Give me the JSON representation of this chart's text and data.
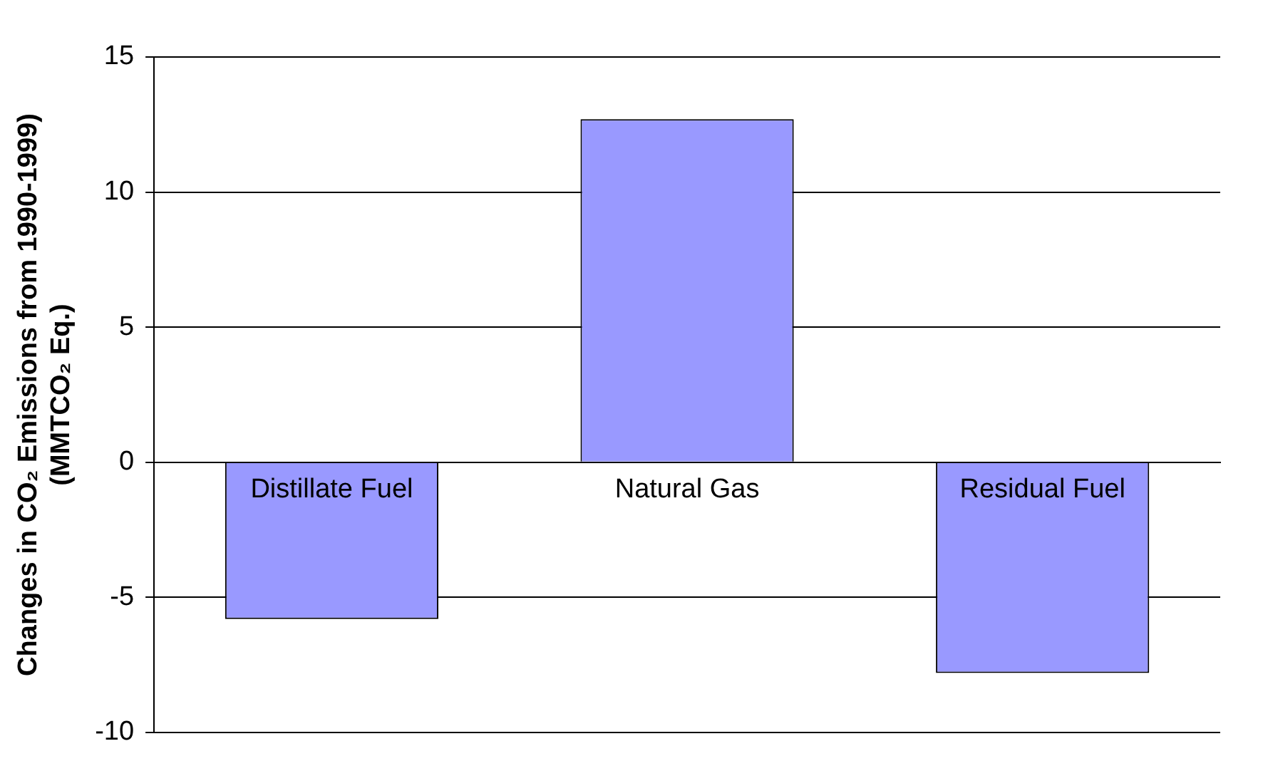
{
  "chart_data": {
    "type": "bar",
    "ylabel": "Changes in CO₂ Emissions from 1990-1999)\n(MMTCO₂ Eq.)",
    "categories": [
      "Distillate Fuel",
      "Natural Gas",
      "Residual Fuel"
    ],
    "values": [
      -5.8,
      12.7,
      -7.8
    ],
    "color": "#9999ff",
    "ylim": [
      -10,
      15
    ],
    "yticks": [
      -10,
      -5,
      0,
      5,
      10,
      15
    ],
    "grid": "y",
    "legend": false
  }
}
